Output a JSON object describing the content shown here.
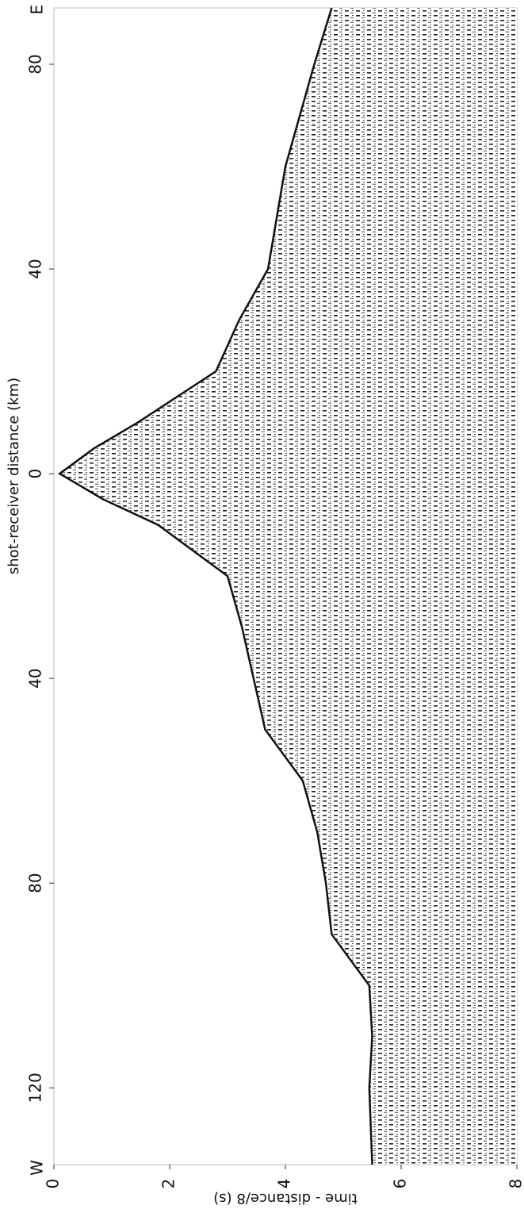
{
  "chart_data": {
    "type": "area",
    "x_label": "time - distance/8 (s)",
    "y_label": "shot-receiver distance (km)",
    "east_label": "E",
    "west_label": "W",
    "xlim": [
      0,
      8
    ],
    "xticks": [
      0,
      2,
      4,
      6,
      8
    ],
    "ylim": [
      -135,
      91
    ],
    "yticks": [
      {
        "value": 80,
        "label": "80"
      },
      {
        "value": 40,
        "label": "40"
      },
      {
        "value": 0,
        "label": "0"
      },
      {
        "value": -40,
        "label": "40"
      },
      {
        "value": -80,
        "label": "80"
      },
      {
        "value": -120,
        "label": "120"
      }
    ],
    "x": [
      91,
      80,
      60,
      40,
      30,
      20,
      10,
      5,
      0,
      -5,
      -10,
      -20,
      -30,
      -40,
      -50,
      -60,
      -70,
      -80,
      -90,
      -100,
      -110,
      -120,
      -135
    ],
    "values": [
      4.8,
      4.5,
      4.0,
      3.7,
      3.2,
      2.8,
      1.45,
      0.7,
      0.1,
      0.85,
      1.8,
      3.0,
      3.25,
      3.45,
      3.65,
      4.3,
      4.55,
      4.7,
      4.8,
      5.45,
      5.5,
      5.45,
      5.5
    ],
    "color": "#111111"
  }
}
